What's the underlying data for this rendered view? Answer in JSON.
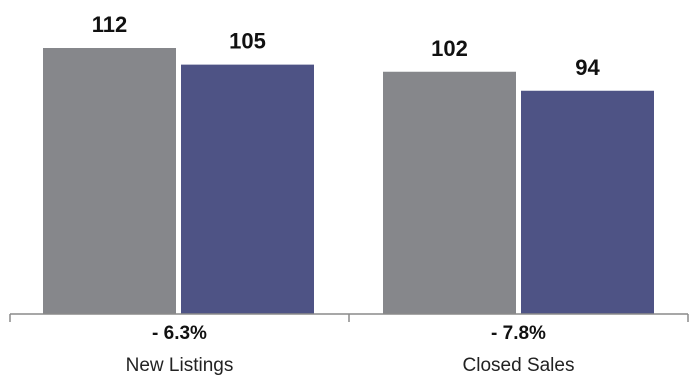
{
  "chart_data": {
    "type": "bar",
    "categories": [
      "New Listings",
      "Closed Sales"
    ],
    "series": [
      {
        "values": [
          112,
          102
        ],
        "color": "#86878b"
      },
      {
        "values": [
          105,
          94
        ],
        "color": "#4e5385"
      }
    ],
    "changes": [
      "- 6.3%",
      "- 7.8%"
    ],
    "ylim": [
      0,
      112
    ],
    "grid": false,
    "axis_color": "#8a8a8a"
  }
}
